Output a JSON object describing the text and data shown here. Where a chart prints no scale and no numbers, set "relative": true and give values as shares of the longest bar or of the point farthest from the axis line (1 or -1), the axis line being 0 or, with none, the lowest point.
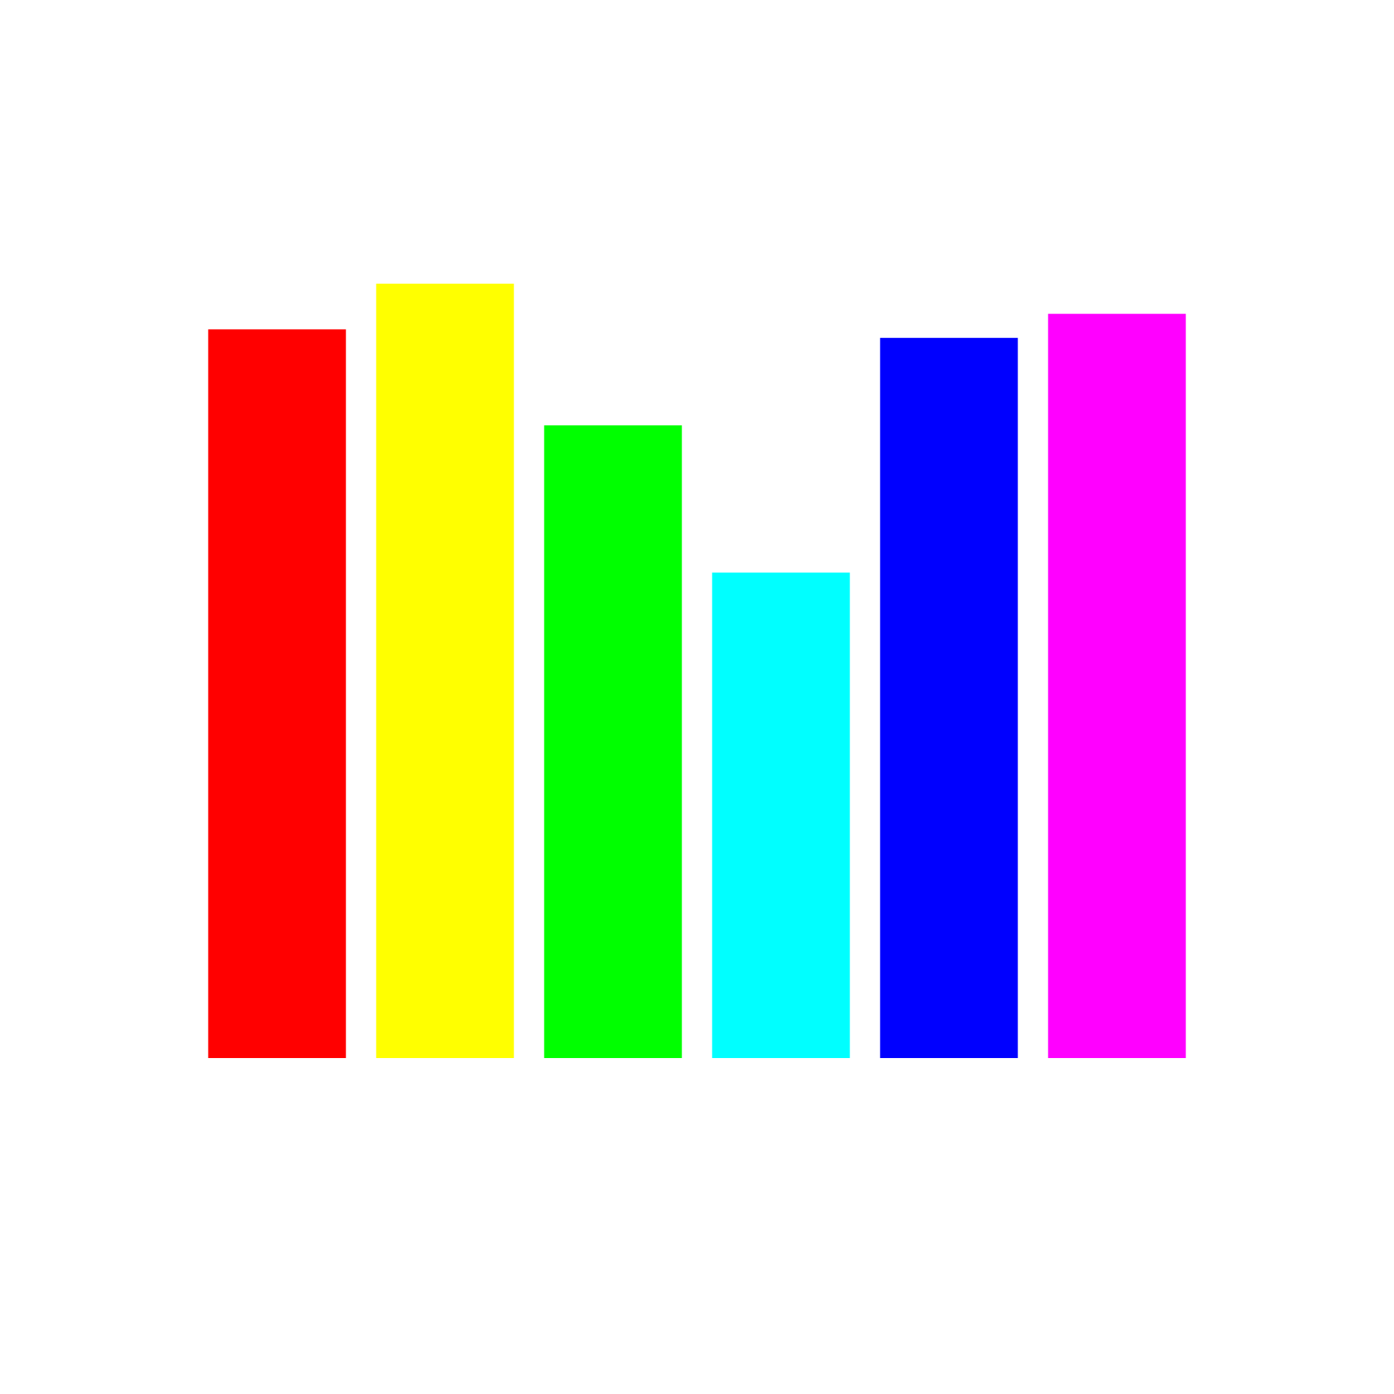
{
  "chart_data": {
    "type": "bar",
    "relative": true,
    "categories": [
      null,
      null,
      null,
      null,
      null,
      null
    ],
    "values": [
      0.941,
      1,
      0.817,
      0.627,
      0.93,
      0.961
    ],
    "colors": [
      "#ff0000",
      "#ffff00",
      "#00ff00",
      "#00ffff",
      "#0000ff",
      "#ff00ff"
    ]
  }
}
